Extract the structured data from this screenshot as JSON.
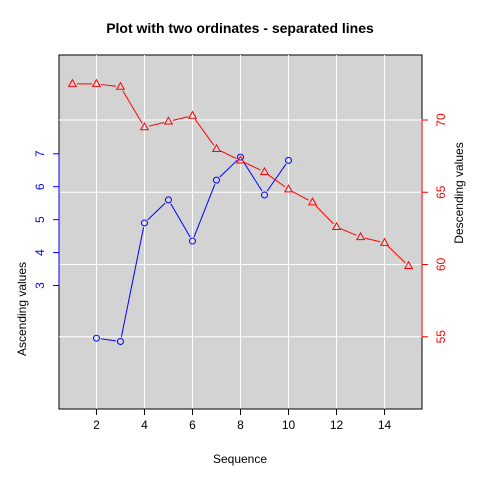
{
  "chart_data": {
    "type": "line",
    "title": "Plot with two ordinates - separated lines",
    "xlabel": "Sequence",
    "x_ticks": [
      2,
      4,
      6,
      8,
      10,
      12,
      14
    ],
    "xlim": [
      0.44,
      15.56
    ],
    "grid": true,
    "colors": {
      "panel_background": "#d3d3d3",
      "grid": "#ffffff",
      "ascending": "#0000ff",
      "descending": "#ff0000"
    },
    "series": [
      {
        "key": "ascending",
        "axis": "left",
        "ylabel": "Ascending values",
        "color": "#0000ff",
        "marker": "circle",
        "y_ticks": [
          3,
          4,
          5,
          6,
          7
        ],
        "ylim": [
          -0.75,
          10.0
        ],
        "x": [
          2,
          3,
          4,
          5,
          6,
          7,
          8,
          9,
          10
        ],
        "values": [
          1.4,
          1.3,
          4.9,
          5.6,
          4.35,
          6.2,
          6.9,
          5.75,
          6.8
        ]
      },
      {
        "key": "descending",
        "axis": "right",
        "ylabel": "Descending values",
        "color": "#ff0000",
        "marker": "triangle",
        "y_ticks": [
          55,
          60,
          65,
          70
        ],
        "ylim": [
          50.0,
          74.5
        ],
        "x": [
          1,
          2,
          3,
          4,
          5,
          6,
          7,
          8,
          9,
          10,
          11,
          12,
          13,
          14,
          15
        ],
        "values": [
          72.5,
          72.5,
          72.3,
          69.5,
          69.9,
          70.3,
          68.0,
          67.2,
          66.4,
          65.2,
          64.3,
          62.6,
          61.9,
          61.5,
          59.9
        ]
      }
    ]
  }
}
